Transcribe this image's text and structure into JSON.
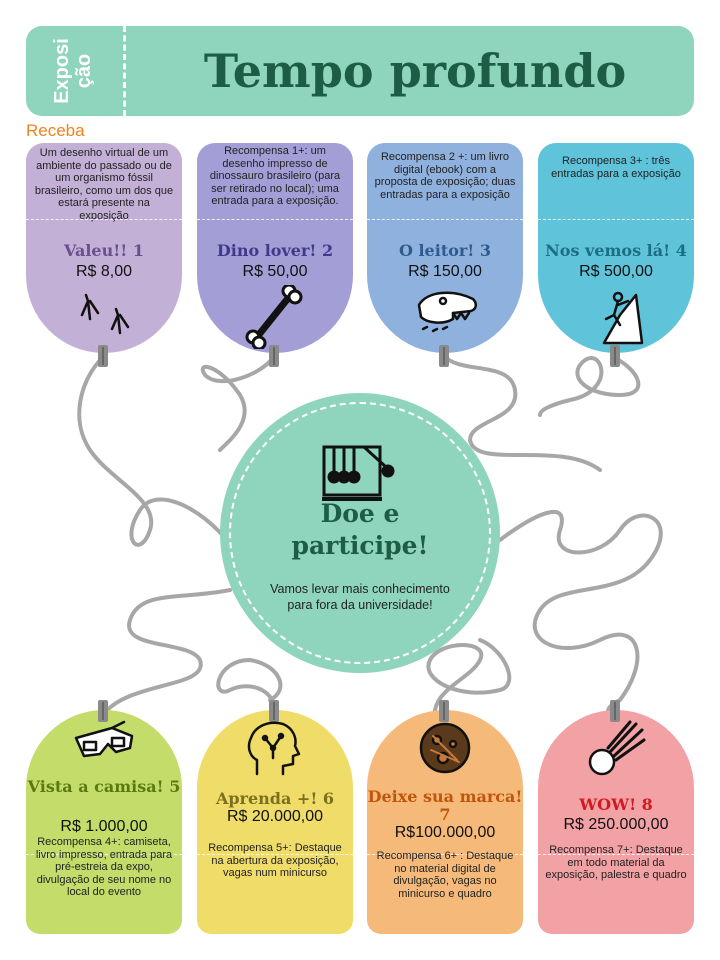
{
  "header": {
    "label": "Exposição",
    "label_line1": "Exposi",
    "label_line2": "ção",
    "title": "Tempo profundo"
  },
  "section_label": "Receba",
  "colors": {
    "header": "#8fd5bd",
    "title": "#1d5c45",
    "section_label": "#f0831e",
    "circle": "#8fd5bd",
    "string": "#a7a7a7"
  },
  "center": {
    "icon": "newtons-cradle-icon",
    "title_line1": "Doe e",
    "title_line2": "participe!",
    "subtitle": "Vamos levar mais conhecimento para fora da universidade!"
  },
  "rewards_top": [
    {
      "description": "Um desenho virtual de um ambiente do passado ou de um organismo fóssil brasileiro, como um dos que estará presente na exposição",
      "name": "Valeu!! 1",
      "price": "R$ 8,00",
      "icon": "footprints-icon",
      "color": "#c3b0d6",
      "name_color": "#6a4f8f"
    },
    {
      "description": "Recompensa 1+: um desenho impresso de dinossauro brasileiro (para ser retirado no local); uma entrada para a exposição.",
      "name": "Dino lover! 2",
      "price": "R$ 50,00",
      "icon": "bone-icon",
      "color": "#a39ed6",
      "name_color": "#3d3a8c"
    },
    {
      "description": "Recompensa 2 +: um livro digital (ebook) com a proposta de exposição; duas entradas para a exposição",
      "name": "O leitor! 3",
      "price": "R$ 150,00",
      "icon": "dinosaur-skull-icon",
      "color": "#8fb1de",
      "name_color": "#2d5b8e"
    },
    {
      "description": "Recompensa 3+ : três entradas para a exposição",
      "name": "Nos vemos lá! 4",
      "price": "R$ 500,00",
      "icon": "climber-icon",
      "color": "#5fc3da",
      "name_color": "#1c6e85"
    }
  ],
  "rewards_bottom": [
    {
      "name": "Vista a camisa! 5",
      "price": "R$ 1.000,00",
      "description": "Recompensa 4+: camiseta, livro impresso, entrada para pré-estreia da expo, divulgação de seu nome no local do evento",
      "icon": "3d-glasses-icon",
      "color": "#c3dc6a",
      "name_color": "#5a7a10"
    },
    {
      "name": "Aprenda +! 6",
      "price": "R$ 20.000,00",
      "description": "Recompensa 5+: Destaque na abertura da exposição, vagas num minicurso",
      "icon": "brain-circuit-icon",
      "color": "#f0dc68",
      "name_color": "#7a7020"
    },
    {
      "name": "Deixe sua marca! 7",
      "price": "R$100.000,00",
      "description": "Recompensa 6+ : Destaque no material digital de divulgação, vagas no minicurso e quadro",
      "icon": "meteor-rock-icon",
      "color": "#f5ba7a",
      "name_color": "#c0560e"
    },
    {
      "name": "WOW! 8",
      "price": "R$ 250.000,00",
      "description": "Recompensa 7+: Destaque em todo material da exposição, palestra e quadro",
      "icon": "meteor-icon",
      "color": "#f2a1a5",
      "name_color": "#d11a22"
    }
  ]
}
